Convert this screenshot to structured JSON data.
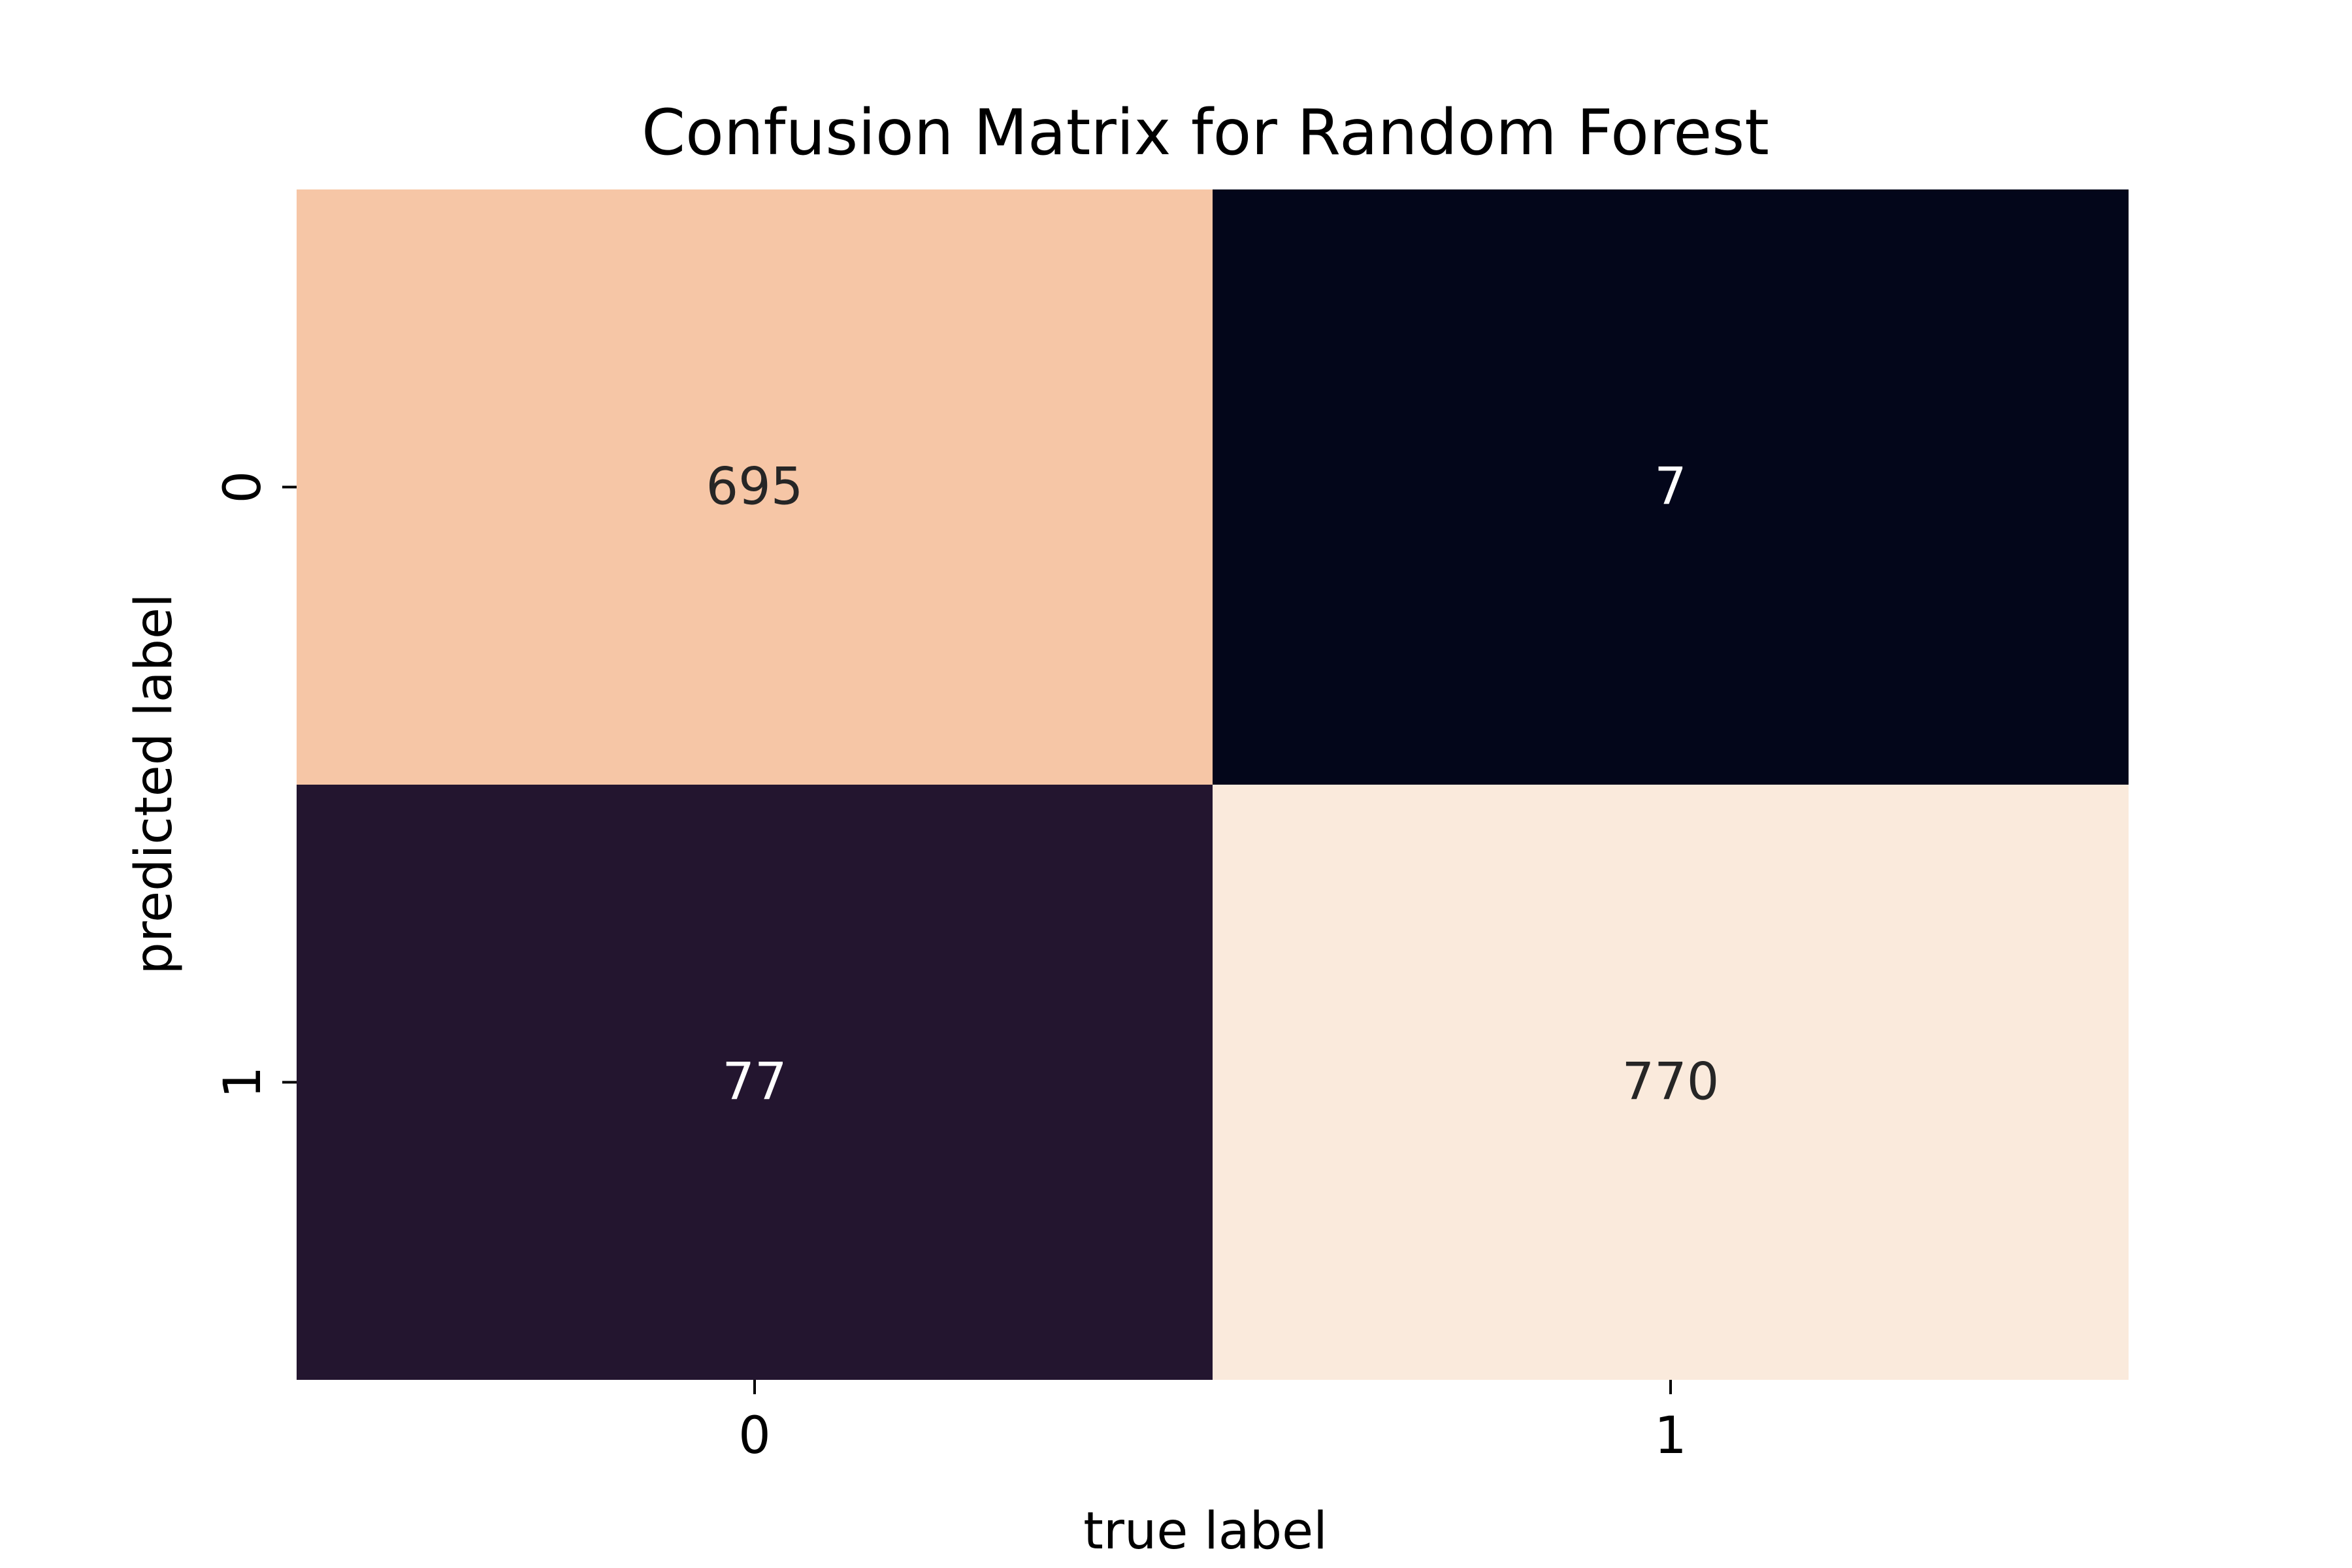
{
  "chart_data": {
    "type": "heatmap",
    "title": "Confusion Matrix for Random Forest",
    "xlabel": "true label",
    "ylabel": "predicted label",
    "x_categories": [
      "0",
      "1"
    ],
    "y_categories": [
      "0",
      "1"
    ],
    "values": [
      [
        695,
        7
      ],
      [
        77,
        770
      ]
    ],
    "colorbar": false,
    "colors": {
      "cell_0_0": "#f6c6a6",
      "cell_0_1": "#03061a",
      "cell_1_0": "#23152f",
      "cell_1_1": "#faeadc",
      "text_dark": "#262626",
      "text_light": "#ffffff"
    }
  }
}
